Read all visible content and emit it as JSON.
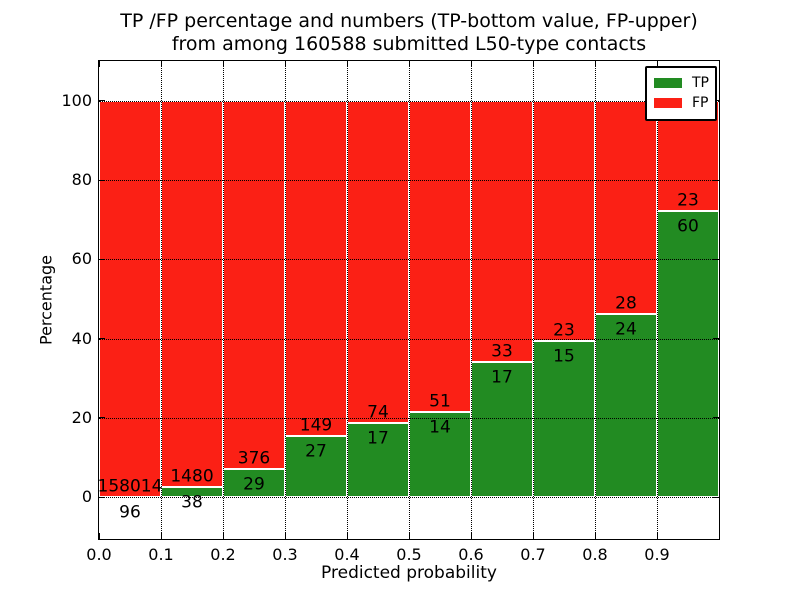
{
  "figure": {
    "title_line1": "TP /FP percentage and numbers (TP-bottom value, FP-upper)",
    "title_line2": "from among 160588 submitted L50-type contacts",
    "ylabel": "Percentage",
    "xlabel": "Predicted probability"
  },
  "legend": {
    "items": [
      {
        "label": "TP",
        "color": "#228b22"
      },
      {
        "label": "FP",
        "color": "#fb2015"
      }
    ]
  },
  "axes": {
    "ytick_labels": [
      "0",
      "20",
      "40",
      "60",
      "80",
      "100"
    ],
    "ytick_values": [
      0,
      20,
      40,
      60,
      80,
      100
    ],
    "xtick_labels": [
      "0.0",
      "0.1",
      "0.2",
      "0.3",
      "0.4",
      "0.5",
      "0.6",
      "0.7",
      "0.8",
      "0.9"
    ],
    "xtick_values": [
      0,
      0.1,
      0.2,
      0.3,
      0.4,
      0.5,
      0.6,
      0.7,
      0.8,
      0.9
    ],
    "xlim": [
      0,
      1.0
    ],
    "ylim": [
      -10.6,
      110.1
    ],
    "grid": "dotted"
  },
  "chart_data": {
    "type": "bar",
    "stacked": true,
    "title": "TP /FP percentage and numbers (TP-bottom value, FP-upper) from among 160588 submitted L50-type contacts",
    "xlabel": "Predicted probability",
    "ylabel": "Percentage",
    "total_contacts": 160588,
    "bin_width": 0.1,
    "bin_starts": [
      0.0,
      0.1,
      0.2,
      0.3,
      0.4,
      0.5,
      0.6,
      0.7,
      0.8,
      0.9
    ],
    "xlim": [
      0,
      1.0
    ],
    "ylim": [
      -10.6,
      110.1
    ],
    "legend_position": "upper right",
    "series": [
      {
        "name": "TP",
        "color": "#228b22",
        "counts": [
          96,
          38,
          29,
          27,
          17,
          14,
          17,
          15,
          24,
          60
        ],
        "percent": [
          0.06,
          2.5,
          7.16,
          15.34,
          18.68,
          21.54,
          34.0,
          39.47,
          46.15,
          72.29
        ]
      },
      {
        "name": "FP",
        "color": "#fb2015",
        "counts": [
          158014,
          1480,
          376,
          149,
          74,
          51,
          33,
          23,
          28,
          23
        ],
        "percent": [
          99.94,
          97.5,
          92.84,
          84.66,
          81.32,
          78.46,
          66.0,
          60.53,
          53.85,
          27.71
        ]
      }
    ]
  }
}
